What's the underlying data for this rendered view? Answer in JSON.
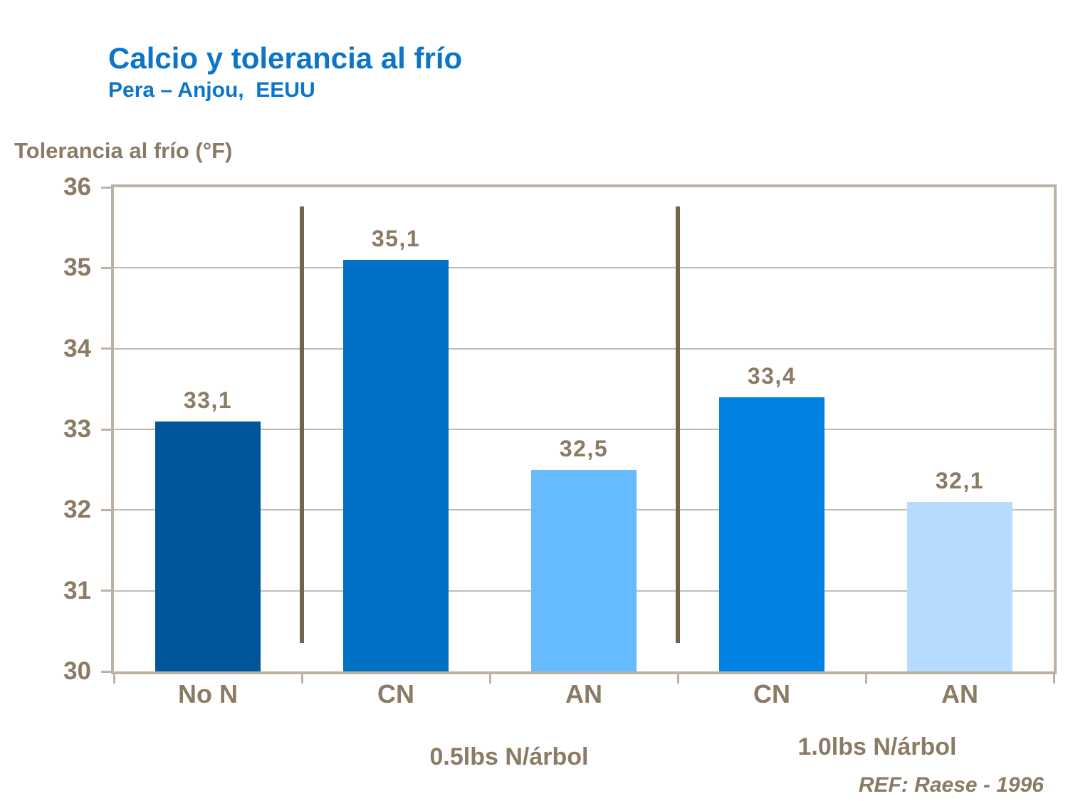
{
  "chart_data": {
    "type": "bar",
    "title": "Calcio y tolerancia al frío",
    "subtitle": "Pera – Anjou,  EEUU",
    "ylabel": "Tolerancia al frío (°F)",
    "xlabel": "",
    "ylim": [
      30,
      36
    ],
    "ytick_step": 1,
    "yticks": [
      30,
      31,
      32,
      33,
      34,
      35,
      36
    ],
    "grid": true,
    "legend": false,
    "categories": [
      "No N",
      "CN",
      "AN",
      "CN",
      "AN"
    ],
    "values": [
      33.1,
      35.1,
      32.5,
      33.4,
      32.1
    ],
    "value_labels": [
      "33,1",
      "35,1",
      "32,5",
      "33,4",
      "32,1"
    ],
    "bar_colors": [
      "#00559b",
      "#0071c5",
      "#66bbff",
      "#0082e3",
      "#b5dcff"
    ],
    "group_labels": [
      "0.5lbs N/árbol",
      "1.0lbs N/árbol"
    ],
    "group_divider_boundaries": [
      1,
      3
    ],
    "annotation": "REF: Raese - 1996"
  },
  "colors": {
    "title_blue": "#0d75c8",
    "text_brown": "#8b7a64",
    "axis_tan": "#bdb1a4",
    "gridline_gray": "#c4bcb4",
    "divider_brown": "#72634e",
    "background": "#ffffff"
  }
}
